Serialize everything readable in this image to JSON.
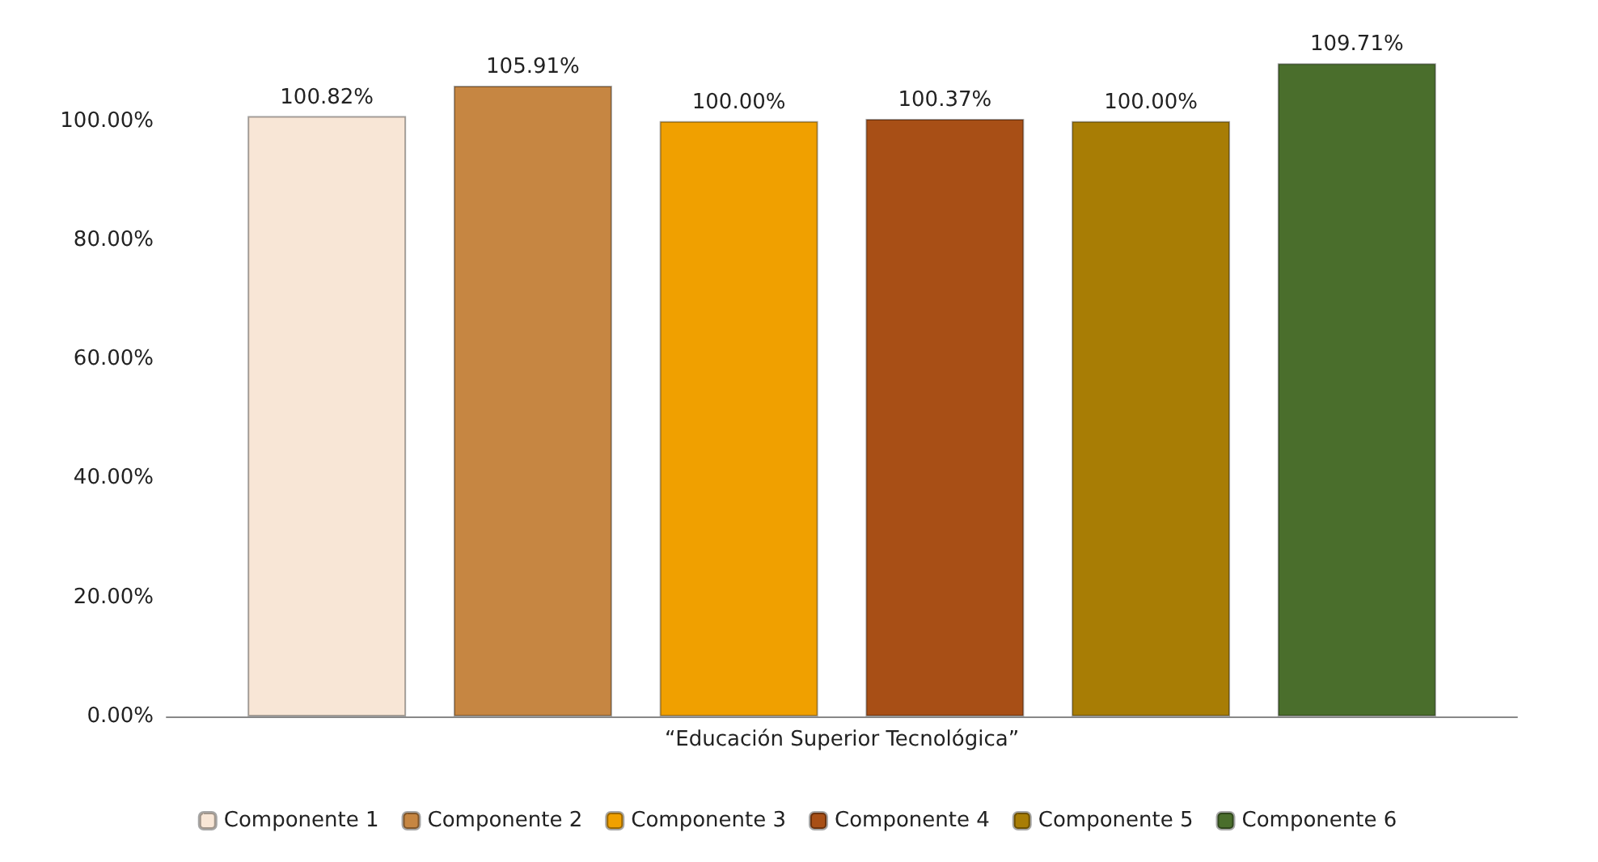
{
  "chart_data": {
    "type": "bar",
    "categories": [
      "“Educación Superior Tecnológica”"
    ],
    "series": [
      {
        "name": "Componente 1",
        "color": "#f8e6d6",
        "values": [
          100.82
        ],
        "value_labels": [
          "100.82%"
        ]
      },
      {
        "name": "Componente 2",
        "color": "#c68642",
        "values": [
          105.91
        ],
        "value_labels": [
          "105.91%"
        ]
      },
      {
        "name": "Componente 3",
        "color": "#f0a000",
        "values": [
          100.0
        ],
        "value_labels": [
          "100.00%"
        ]
      },
      {
        "name": "Componente 4",
        "color": "#a84f16",
        "values": [
          100.37
        ],
        "value_labels": [
          "100.37%"
        ]
      },
      {
        "name": "Componente 5",
        "color": "#a87d05",
        "values": [
          100.0
        ],
        "value_labels": [
          "100.00%"
        ]
      },
      {
        "name": "Componente 6",
        "color": "#4a6e2c",
        "values": [
          109.71
        ],
        "value_labels": [
          "109.71%"
        ]
      }
    ],
    "ylim": [
      0,
      110
    ],
    "yticks": [
      {
        "value": 0,
        "label": "0.00%"
      },
      {
        "value": 20,
        "label": "20.00%"
      },
      {
        "value": 40,
        "label": "40.00%"
      },
      {
        "value": 60,
        "label": "60.00%"
      },
      {
        "value": 80,
        "label": "80.00%"
      },
      {
        "value": 100,
        "label": "100.00%"
      }
    ],
    "grid": false,
    "legend": "bottom"
  }
}
